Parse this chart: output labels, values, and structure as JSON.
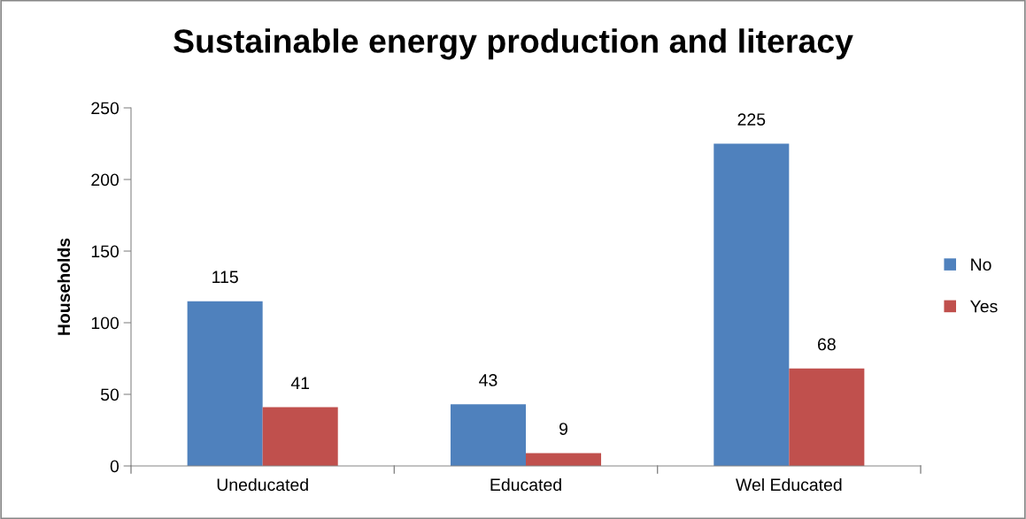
{
  "chart_data": {
    "type": "bar",
    "title": "Sustainable energy production and literacy",
    "ylabel": "Households",
    "categories": [
      "Uneducated",
      "Educated",
      "Wel Educated"
    ],
    "series": [
      {
        "name": "No",
        "color": "#4f81bd",
        "values": [
          115,
          43,
          225
        ]
      },
      {
        "name": "Yes",
        "color": "#c0504d",
        "values": [
          41,
          9,
          68
        ]
      }
    ],
    "ylim": [
      0,
      250
    ],
    "yticks": [
      0,
      50,
      100,
      150,
      200,
      250
    ],
    "data_labels": true,
    "grid": false,
    "legend": "right"
  }
}
